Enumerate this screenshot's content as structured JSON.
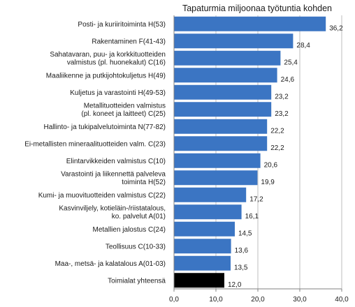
{
  "chart_data": {
    "type": "bar",
    "orientation": "horizontal",
    "title": "Tapaturmia miljoonaa työtuntia kohden",
    "xlabel": "",
    "ylabel": "",
    "xlim": [
      0,
      40
    ],
    "ticks": [
      "0,0",
      "10,0",
      "20,0",
      "30,0",
      "40,0"
    ],
    "tick_values": [
      0,
      10,
      20,
      30,
      40
    ],
    "grid": true,
    "legend": "none",
    "categories": [
      [
        "Posti- ja kuriiritoiminta H(53)"
      ],
      [
        "Rakentaminen F(41-43)"
      ],
      [
        "Sahatavaran, puu- ja korkkituotteiden",
        "valmistus (pl. huonekalut) C(16)"
      ],
      [
        "Maaliikenne ja putkijohtokuljetus H(49)"
      ],
      [
        "Kuljetus ja varastointi H(49-53)"
      ],
      [
        "Metallituotteiden valmistus",
        "(pl. koneet ja laitteet) C(25)"
      ],
      [
        "Hallinto- ja tukipalvelutoiminta N(77-82)"
      ],
      [
        "Ei-metallisten mineraalituotteiden valm. C(23)"
      ],
      [
        "Elintarvikkeiden valmistus C(10)"
      ],
      [
        "Varastointi ja liikennettä palveleva",
        "toiminta H(52)"
      ],
      [
        "Kumi- ja muovituotteiden valmistus C(22)"
      ],
      [
        "Kasvinviljely, kotieläin-/riistatalous,",
        "ko. palvelut A(01)"
      ],
      [
        "Metallien jalostus C(24)"
      ],
      [
        "Teollisuus C(10-33)"
      ],
      [
        "Maa-, metsä- ja kalatalous A(01-03)"
      ],
      [
        "Toimialat yhteensä"
      ]
    ],
    "values": [
      36.2,
      28.4,
      25.4,
      24.6,
      23.2,
      23.2,
      22.2,
      22.2,
      20.6,
      19.9,
      17.2,
      16.1,
      14.5,
      13.6,
      13.5,
      12.0
    ],
    "value_labels": [
      "36,2",
      "28,4",
      "25,4",
      "24,6",
      "23,2",
      "23,2",
      "22,2",
      "22,2",
      "20,6",
      "19,9",
      "17,2",
      "16,1",
      "14,5",
      "13,6",
      "13,5",
      "12,0"
    ],
    "colors": {
      "bar": "#3b75c3",
      "total_bar": "#000000",
      "grid": "#bdbdbd",
      "axis": "#808080"
    },
    "highlight_index": 15
  }
}
